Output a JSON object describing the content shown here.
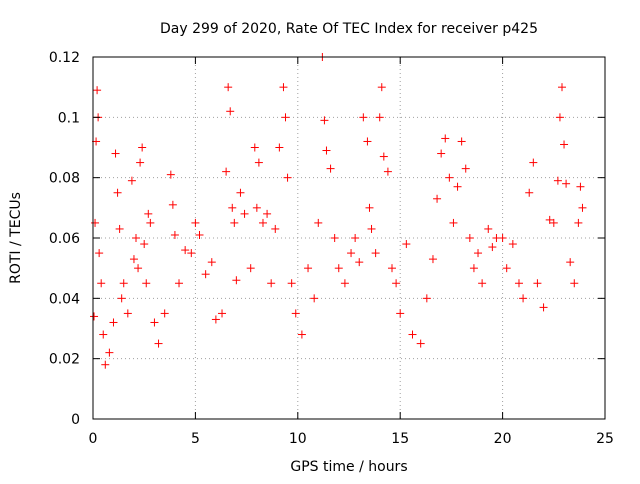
{
  "chart_data": {
    "type": "scatter",
    "title": "Day 299 of 2020, Rate Of TEC Index for receiver p425",
    "xlabel": "GPS time / hours",
    "ylabel": "ROTI / TECUs",
    "xlim": [
      0,
      25
    ],
    "ylim": [
      0,
      0.12
    ],
    "xticks": [
      0,
      5,
      10,
      15,
      20,
      25
    ],
    "xtick_labels": [
      "0",
      "5",
      "10",
      "15",
      "20",
      "25"
    ],
    "yticks": [
      0,
      0.02,
      0.04,
      0.06,
      0.08,
      0.1,
      0.12
    ],
    "ytick_labels": [
      "0",
      "0.02",
      "0.04",
      "0.06",
      "0.08",
      "0.1",
      "0.12"
    ],
    "grid": true,
    "marker": "+",
    "color": "#ff0000",
    "series": [
      {
        "points": [
          [
            0.05,
            0.034
          ],
          [
            0.1,
            0.065
          ],
          [
            0.15,
            0.092
          ],
          [
            0.2,
            0.109
          ],
          [
            0.25,
            0.1
          ],
          [
            0.3,
            0.055
          ],
          [
            0.4,
            0.045
          ],
          [
            0.5,
            0.028
          ],
          [
            0.6,
            0.018
          ],
          [
            0.8,
            0.022
          ],
          [
            1.0,
            0.032
          ],
          [
            1.1,
            0.088
          ],
          [
            1.2,
            0.075
          ],
          [
            1.3,
            0.063
          ],
          [
            1.4,
            0.04
          ],
          [
            1.5,
            0.045
          ],
          [
            1.7,
            0.035
          ],
          [
            1.9,
            0.079
          ],
          [
            2.0,
            0.053
          ],
          [
            2.1,
            0.06
          ],
          [
            2.2,
            0.05
          ],
          [
            2.3,
            0.085
          ],
          [
            2.4,
            0.09
          ],
          [
            2.5,
            0.058
          ],
          [
            2.6,
            0.045
          ],
          [
            2.7,
            0.068
          ],
          [
            2.8,
            0.065
          ],
          [
            3.0,
            0.032
          ],
          [
            3.2,
            0.025
          ],
          [
            3.5,
            0.035
          ],
          [
            3.8,
            0.081
          ],
          [
            3.9,
            0.071
          ],
          [
            4.0,
            0.061
          ],
          [
            4.2,
            0.045
          ],
          [
            4.5,
            0.056
          ],
          [
            4.8,
            0.055
          ],
          [
            5.0,
            0.065
          ],
          [
            5.2,
            0.061
          ],
          [
            5.5,
            0.048
          ],
          [
            5.8,
            0.052
          ],
          [
            6.0,
            0.033
          ],
          [
            6.3,
            0.035
          ],
          [
            6.5,
            0.082
          ],
          [
            6.6,
            0.11
          ],
          [
            6.7,
            0.102
          ],
          [
            6.8,
            0.07
          ],
          [
            6.9,
            0.065
          ],
          [
            7.0,
            0.046
          ],
          [
            7.2,
            0.075
          ],
          [
            7.4,
            0.068
          ],
          [
            7.7,
            0.05
          ],
          [
            7.9,
            0.09
          ],
          [
            8.0,
            0.07
          ],
          [
            8.1,
            0.085
          ],
          [
            8.3,
            0.065
          ],
          [
            8.5,
            0.068
          ],
          [
            8.7,
            0.045
          ],
          [
            8.9,
            0.063
          ],
          [
            9.1,
            0.09
          ],
          [
            9.3,
            0.11
          ],
          [
            9.4,
            0.1
          ],
          [
            9.5,
            0.08
          ],
          [
            9.7,
            0.045
          ],
          [
            9.9,
            0.035
          ],
          [
            10.2,
            0.028
          ],
          [
            10.5,
            0.05
          ],
          [
            10.8,
            0.04
          ],
          [
            11.0,
            0.065
          ],
          [
            11.2,
            0.12
          ],
          [
            11.3,
            0.099
          ],
          [
            11.4,
            0.089
          ],
          [
            11.6,
            0.083
          ],
          [
            11.8,
            0.06
          ],
          [
            12.0,
            0.05
          ],
          [
            12.3,
            0.045
          ],
          [
            12.6,
            0.055
          ],
          [
            12.8,
            0.06
          ],
          [
            13.0,
            0.052
          ],
          [
            13.2,
            0.1
          ],
          [
            13.4,
            0.092
          ],
          [
            13.5,
            0.07
          ],
          [
            13.6,
            0.063
          ],
          [
            13.8,
            0.055
          ],
          [
            14.0,
            0.1
          ],
          [
            14.1,
            0.11
          ],
          [
            14.2,
            0.087
          ],
          [
            14.4,
            0.082
          ],
          [
            14.6,
            0.05
          ],
          [
            14.8,
            0.045
          ],
          [
            15.0,
            0.035
          ],
          [
            15.3,
            0.058
          ],
          [
            15.6,
            0.028
          ],
          [
            16.0,
            0.025
          ],
          [
            16.3,
            0.04
          ],
          [
            16.6,
            0.053
          ],
          [
            16.8,
            0.073
          ],
          [
            17.0,
            0.088
          ],
          [
            17.2,
            0.093
          ],
          [
            17.4,
            0.08
          ],
          [
            17.6,
            0.065
          ],
          [
            17.8,
            0.077
          ],
          [
            18.0,
            0.092
          ],
          [
            18.2,
            0.083
          ],
          [
            18.4,
            0.06
          ],
          [
            18.6,
            0.05
          ],
          [
            18.8,
            0.055
          ],
          [
            19.0,
            0.045
          ],
          [
            19.3,
            0.063
          ],
          [
            19.5,
            0.057
          ],
          [
            19.7,
            0.06
          ],
          [
            20.0,
            0.06
          ],
          [
            20.2,
            0.05
          ],
          [
            20.5,
            0.058
          ],
          [
            20.8,
            0.045
          ],
          [
            21.0,
            0.04
          ],
          [
            21.3,
            0.075
          ],
          [
            21.5,
            0.085
          ],
          [
            21.7,
            0.045
          ],
          [
            22.0,
            0.037
          ],
          [
            22.3,
            0.066
          ],
          [
            22.5,
            0.065
          ],
          [
            22.7,
            0.079
          ],
          [
            22.8,
            0.1
          ],
          [
            22.9,
            0.11
          ],
          [
            23.0,
            0.091
          ],
          [
            23.1,
            0.078
          ],
          [
            23.3,
            0.052
          ],
          [
            23.5,
            0.045
          ],
          [
            23.7,
            0.065
          ],
          [
            23.8,
            0.077
          ],
          [
            23.9,
            0.07
          ]
        ]
      }
    ]
  }
}
